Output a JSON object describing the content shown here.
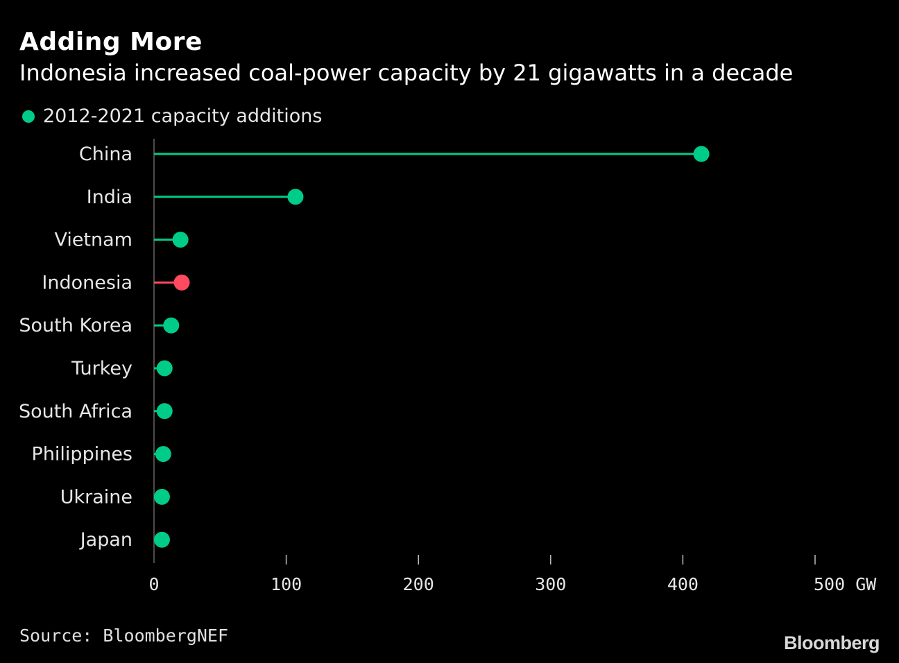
{
  "header": {
    "title": "Adding More",
    "subtitle": "Indonesia increased coal-power capacity by 21 gigawatts in a decade"
  },
  "legend": {
    "label": "2012-2021 capacity additions"
  },
  "footer": {
    "source": "Source: BloombergNEF",
    "logo": "Bloomberg"
  },
  "colors": {
    "accent": "#00cc8a",
    "highlight": "#ff4a60",
    "axis": "#666666",
    "tick": "#bfbfbf",
    "label": "#e6e6e6"
  },
  "chart_data": {
    "type": "lollipop",
    "title": "Adding More",
    "subtitle": "Indonesia increased coal-power capacity by 21 gigawatts in a decade",
    "xlabel": "GW",
    "ylabel": "",
    "xlim": [
      0,
      500
    ],
    "xticks": [
      0,
      100,
      200,
      300,
      400,
      500
    ],
    "xtick_labels": [
      "0",
      "100",
      "200",
      "300",
      "400",
      "500 GW"
    ],
    "highlight": "Indonesia",
    "series": [
      {
        "name": "2012-2021 capacity additions",
        "categories": [
          "China",
          "India",
          "Vietnam",
          "Indonesia",
          "South Korea",
          "Turkey",
          "South Africa",
          "Philippines",
          "Ukraine",
          "Japan"
        ],
        "values": [
          414,
          107,
          20,
          21,
          13,
          8,
          8,
          7,
          6,
          6
        ]
      }
    ],
    "legend": "top-left",
    "grid": false
  }
}
